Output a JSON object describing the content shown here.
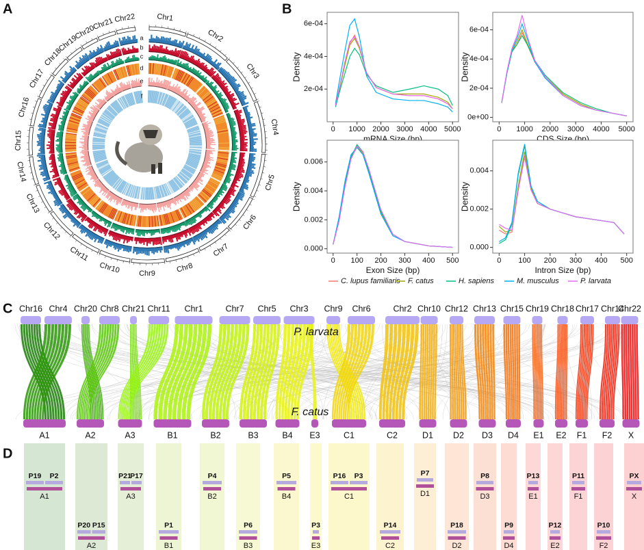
{
  "panel_labels": [
    "A",
    "B",
    "C",
    "D"
  ],
  "circos": {
    "chromosomes": [
      "Chr1",
      "Chr2",
      "Chr3",
      "Chr4",
      "Chr5",
      "Chr6",
      "Chr7",
      "Chr8",
      "Chr9",
      "Chr10",
      "Chr11",
      "Chr12",
      "Chr13",
      "Chr14",
      "Chr15",
      "Chr16",
      "Chr17",
      "Chr18",
      "Chr19",
      "Chr20",
      "Chr21",
      "Chr22"
    ],
    "tracks": [
      "a",
      "b",
      "c",
      "d",
      "e",
      "f"
    ]
  },
  "chart_data": [
    {
      "type": "line",
      "xlabel": "mRNA Size (bp)",
      "ylabel": "Density",
      "x": [
        100,
        300,
        500,
        700,
        900,
        1100,
        1400,
        1800,
        2500,
        3200,
        3800,
        4400,
        4800,
        5000
      ],
      "xlim": [
        -250,
        5250
      ],
      "xticks": [
        0,
        1000,
        2000,
        3000,
        4000,
        5000
      ],
      "ylim": [
        0,
        0.00067
      ],
      "yticks": [
        {
          "value": 0.0002,
          "label": "2e-04"
        },
        {
          "value": 0.0004,
          "label": "4e-04"
        },
        {
          "value": 0.0006,
          "label": "6e-04"
        }
      ],
      "series": [
        {
          "name": "C. lupus familiaris",
          "color": "#F8766D",
          "values": [
            0.0001,
            0.00023,
            0.00036,
            0.00048,
            0.00053,
            0.00046,
            0.0003,
            0.00021,
            0.00017,
            0.00016,
            0.00016,
            0.00014,
            0.00011,
            8e-05
          ]
        },
        {
          "name": "F. catus",
          "color": "#A3A500",
          "values": [
            0.0001,
            0.00022,
            0.00035,
            0.00047,
            0.00051,
            0.00045,
            0.0003,
            0.00021,
            0.00017,
            0.00017,
            0.00017,
            0.00015,
            0.00012,
            8e-05
          ]
        },
        {
          "name": "H. sapiens",
          "color": "#00BF7D",
          "values": [
            9e-05,
            0.0002,
            0.0003,
            0.0004,
            0.00045,
            0.00041,
            0.00029,
            0.00022,
            0.00018,
            0.0002,
            0.00022,
            0.0002,
            0.00016,
            0.0001
          ]
        },
        {
          "name": "M. musculus",
          "color": "#00B0F6",
          "values": [
            0.00011,
            0.00028,
            0.00044,
            0.00059,
            0.00063,
            0.00052,
            0.00028,
            0.00018,
            0.00014,
            0.00013,
            0.00013,
            0.00011,
            9e-05,
            6e-05
          ]
        },
        {
          "name": "P. larvata",
          "color": "#E76BF3",
          "values": [
            0.0001,
            0.00023,
            0.00037,
            0.00049,
            0.00052,
            0.00046,
            0.0003,
            0.00021,
            0.00017,
            0.00016,
            0.00016,
            0.00014,
            0.00011,
            8e-05
          ]
        }
      ]
    },
    {
      "type": "line",
      "xlabel": "CDS Size (bp)",
      "ylabel": "Density",
      "x": [
        100,
        300,
        500,
        700,
        900,
        1100,
        1400,
        1800,
        2500,
        3200,
        3800,
        4400,
        5000
      ],
      "xlim": [
        -250,
        5250
      ],
      "xticks": [
        0,
        1000,
        2000,
        3000,
        4000,
        5000
      ],
      "ylim": [
        -3e-05,
        0.00072
      ],
      "yticks": [
        {
          "value": 0,
          "label": "0e+00"
        },
        {
          "value": 0.0002,
          "label": "2e-04"
        },
        {
          "value": 0.0004,
          "label": "4e-04"
        },
        {
          "value": 0.0006,
          "label": "6e-04"
        }
      ],
      "series": [
        {
          "name": "C. lupus familiaris",
          "color": "#F8766D",
          "values": [
            0.0001,
            0.0003,
            0.00045,
            0.0005,
            0.00058,
            0.0005,
            0.00038,
            0.00028,
            0.00016,
            9e-05,
            5e-05,
            3e-05,
            1e-05
          ]
        },
        {
          "name": "F. catus",
          "color": "#A3A500",
          "values": [
            0.0001,
            0.0003,
            0.00045,
            0.00052,
            0.0006,
            0.00051,
            0.00038,
            0.00028,
            0.00016,
            9e-05,
            5e-05,
            3e-05,
            1e-05
          ]
        },
        {
          "name": "H. sapiens",
          "color": "#00BF7D",
          "values": [
            0.0001,
            0.0003,
            0.00045,
            0.0005,
            0.00056,
            0.0005,
            0.00039,
            0.00029,
            0.00017,
            0.0001,
            6e-05,
            3e-05,
            1e-05
          ]
        },
        {
          "name": "M. musculus",
          "color": "#00B0F6",
          "values": [
            0.0001,
            0.0003,
            0.00046,
            0.00054,
            0.00064,
            0.00054,
            0.00038,
            0.00027,
            0.00015,
            8e-05,
            5e-05,
            3e-05,
            1e-05
          ]
        },
        {
          "name": "P. larvata",
          "color": "#E76BF3",
          "values": [
            0.0001,
            0.00031,
            0.00047,
            0.00056,
            0.0007,
            0.00056,
            0.00039,
            0.00028,
            0.00015,
            8e-05,
            5e-05,
            3e-05,
            1e-05
          ]
        }
      ]
    },
    {
      "type": "line",
      "xlabel": "Exon Size (bp)",
      "ylabel": "Density",
      "x": [
        0,
        25,
        50,
        75,
        100,
        125,
        150,
        200,
        250,
        300,
        400,
        500
      ],
      "xlim": [
        -25,
        525
      ],
      "xticks": [
        0,
        100,
        200,
        300,
        400,
        500
      ],
      "ylim": [
        -0.0003,
        0.0075
      ],
      "yticks": [
        {
          "value": 0,
          "label": "0.000"
        },
        {
          "value": 0.002,
          "label": "0.002"
        },
        {
          "value": 0.004,
          "label": "0.004"
        },
        {
          "value": 0.006,
          "label": "0.006"
        }
      ],
      "series": [
        {
          "name": "C. lupus familiaris",
          "color": "#F8766D",
          "values": [
            0.0003,
            0.002,
            0.0045,
            0.0063,
            0.007,
            0.0066,
            0.0054,
            0.0026,
            0.001,
            0.0005,
            0.0002,
            0.0001
          ]
        },
        {
          "name": "F. catus",
          "color": "#A3A500",
          "values": [
            0.0003,
            0.0021,
            0.0046,
            0.0064,
            0.0071,
            0.0066,
            0.0053,
            0.0025,
            0.001,
            0.0005,
            0.0002,
            0.0001
          ]
        },
        {
          "name": "H. sapiens",
          "color": "#00BF7D",
          "values": [
            0.0003,
            0.002,
            0.0044,
            0.0063,
            0.0072,
            0.0067,
            0.0054,
            0.0026,
            0.001,
            0.0005,
            0.0002,
            0.0001
          ]
        },
        {
          "name": "M. musculus",
          "color": "#00B0F6",
          "values": [
            0.0003,
            0.0022,
            0.0047,
            0.0065,
            0.007,
            0.0065,
            0.0052,
            0.0024,
            0.0009,
            0.0005,
            0.0002,
            0.0001
          ]
        },
        {
          "name": "P. larvata",
          "color": "#E76BF3",
          "values": [
            0.0003,
            0.0019,
            0.0043,
            0.0062,
            0.0071,
            0.0067,
            0.0055,
            0.0027,
            0.001,
            0.0005,
            0.0002,
            0.0001
          ]
        }
      ]
    },
    {
      "type": "line",
      "xlabel": "Intron Size (bp)",
      "ylabel": "Density",
      "x": [
        0,
        25,
        50,
        75,
        100,
        125,
        150,
        200,
        250,
        300,
        350,
        400,
        450,
        490
      ],
      "xlim": [
        -25,
        525
      ],
      "xticks": [
        0,
        100,
        200,
        300,
        400,
        500
      ],
      "ylim": [
        -0.0003,
        0.0056
      ],
      "yticks": [
        {
          "value": 0,
          "label": "0.000"
        },
        {
          "value": 0.002,
          "label": "0.002"
        },
        {
          "value": 0.004,
          "label": "0.004"
        }
      ],
      "series": [
        {
          "name": "C. lupus familiaris",
          "color": "#F8766D",
          "values": [
            0.0009,
            0.0007,
            0.0008,
            0.003,
            0.0048,
            0.003,
            0.0023,
            0.002,
            0.0018,
            0.0016,
            0.0015,
            0.0014,
            0.0013,
            0.0007
          ]
        },
        {
          "name": "F. catus",
          "color": "#A3A500",
          "values": [
            0.0011,
            0.0008,
            0.0009,
            0.0032,
            0.005,
            0.0031,
            0.0023,
            0.002,
            0.0018,
            0.0016,
            0.0015,
            0.0014,
            0.0013,
            0.0007
          ]
        },
        {
          "name": "H. sapiens",
          "color": "#00BF7D",
          "values": [
            0.0002,
            0.0004,
            0.0012,
            0.0038,
            0.0053,
            0.0032,
            0.0024,
            0.002,
            0.0018,
            0.0016,
            0.0015,
            0.0014,
            0.0013,
            0.0007
          ]
        },
        {
          "name": "M. musculus",
          "color": "#00B0F6",
          "values": [
            0.0003,
            0.0005,
            0.0013,
            0.0039,
            0.0054,
            0.0032,
            0.0024,
            0.002,
            0.0018,
            0.0016,
            0.0015,
            0.0014,
            0.0013,
            0.0007
          ]
        },
        {
          "name": "P. larvata",
          "color": "#E76BF3",
          "values": [
            0.0012,
            0.001,
            0.0009,
            0.003,
            0.0047,
            0.003,
            0.0023,
            0.002,
            0.0018,
            0.0016,
            0.0015,
            0.0014,
            0.0013,
            0.0007
          ]
        }
      ]
    }
  ],
  "synteny": {
    "top_label": "P. larvata",
    "bottom_label": "F. catus",
    "top": [
      "Chr16",
      "Chr4",
      "Chr20",
      "Chr8",
      "Chr21",
      "Chr11",
      "Chr1",
      "Chr7",
      "Chr5",
      "Chr3",
      "Chr9",
      "Chr6",
      "Chr2",
      "Chr10",
      "Chr12",
      "Chr13",
      "Chr15",
      "Chr19",
      "Chr18",
      "Chr17",
      "Chr14",
      "Chr22"
    ],
    "bottom": [
      "A1",
      "A2",
      "A3",
      "B1",
      "B2",
      "B3",
      "B4",
      "E3",
      "C1",
      "C2",
      "D1",
      "D2",
      "D3",
      "D4",
      "E1",
      "E2",
      "F1",
      "F2",
      "X"
    ]
  },
  "blocks": [
    {
      "pairs": [
        "P19",
        "P2"
      ],
      "label": "A1"
    },
    {
      "pairs": [
        "P20",
        "P15"
      ],
      "label": "A2"
    },
    {
      "pairs": [
        "P21",
        "P17"
      ],
      "label": "A3"
    },
    {
      "pairs": [
        "P1"
      ],
      "label": "B1"
    },
    {
      "pairs": [
        "P4"
      ],
      "label": "B2"
    },
    {
      "pairs": [
        "P6"
      ],
      "label": "B3"
    },
    {
      "pairs": [
        "P5"
      ],
      "label": "B4"
    },
    {
      "pairs": [
        "P3"
      ],
      "label": "E3"
    },
    {
      "pairs": [
        "P16",
        "P3"
      ],
      "label": "C1"
    },
    {
      "pairs": [
        "P14"
      ],
      "label": "C2"
    },
    {
      "pairs": [
        "P7"
      ],
      "label": "D1"
    },
    {
      "pairs": [
        "P18"
      ],
      "label": "D2"
    },
    {
      "pairs": [
        "P8"
      ],
      "label": "D3"
    },
    {
      "pairs": [
        "P9"
      ],
      "label": "D4"
    },
    {
      "pairs": [
        "P13"
      ],
      "label": "E1"
    },
    {
      "pairs": [
        "P12"
      ],
      "label": "E2"
    },
    {
      "pairs": [
        "P11"
      ],
      "label": "F1"
    },
    {
      "pairs": [
        "P10"
      ],
      "label": "F2"
    },
    {
      "pairs": [
        "PX"
      ],
      "label": "X"
    }
  ]
}
